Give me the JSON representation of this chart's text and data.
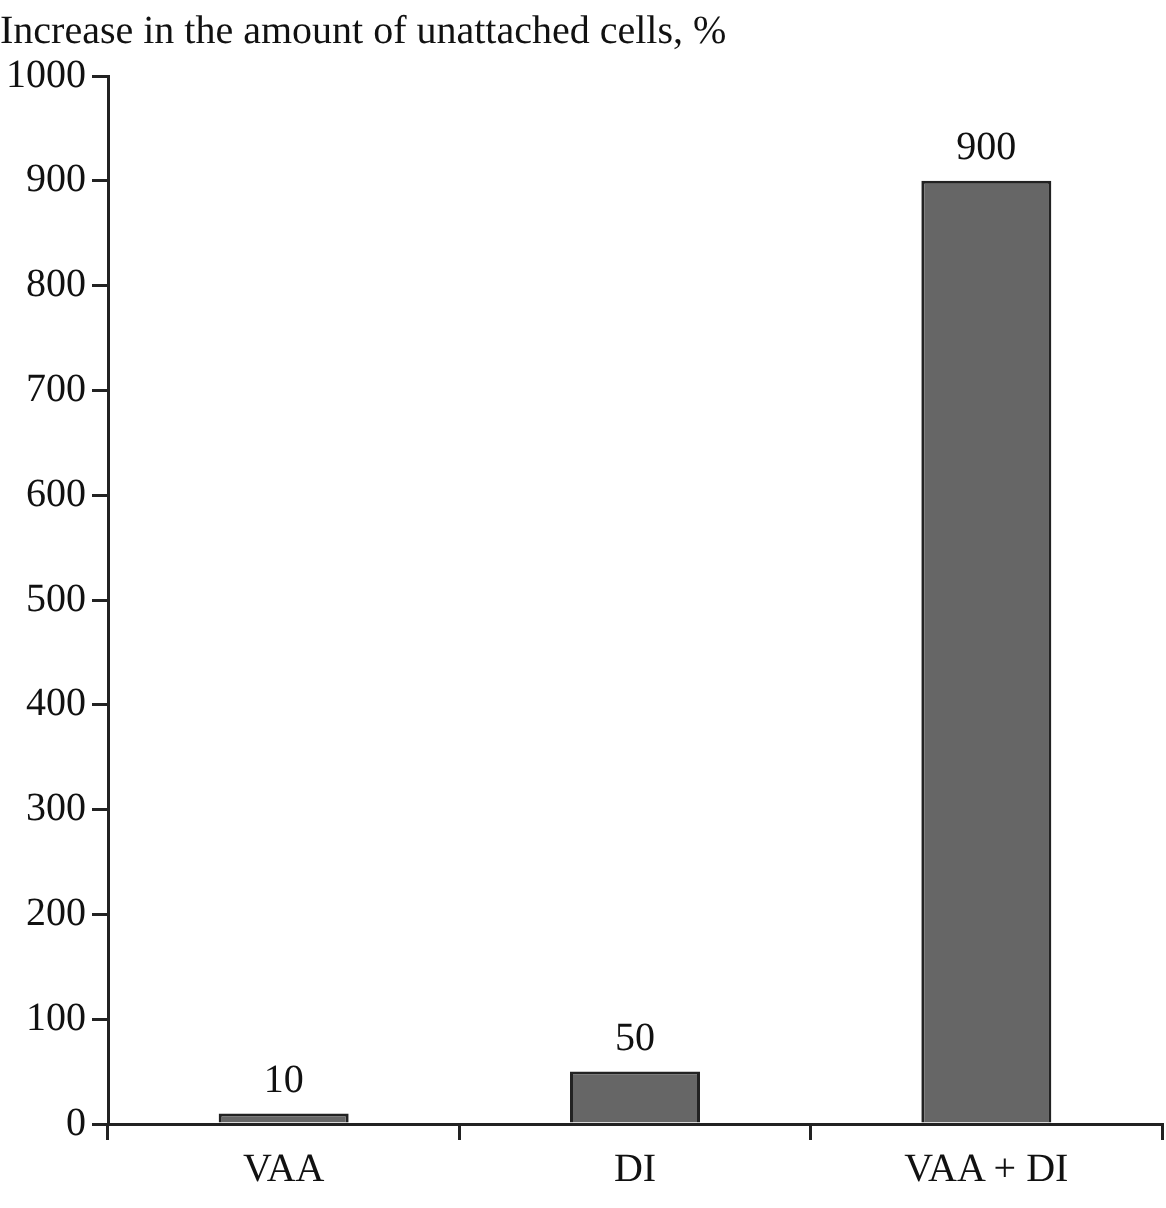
{
  "chart_data": {
    "type": "bar",
    "ylabel": "Increase in the amount of unattached cells, %",
    "categories": [
      "VAA",
      "DI",
      "VAA + DI"
    ],
    "values": [
      10,
      50,
      900
    ],
    "color": "#666666",
    "ylim": [
      0,
      1000
    ],
    "yticks": [
      0,
      100,
      200,
      300,
      400,
      500,
      600,
      700,
      800,
      900,
      1000
    ],
    "data_labels": true,
    "grid": false,
    "legend": false
  }
}
